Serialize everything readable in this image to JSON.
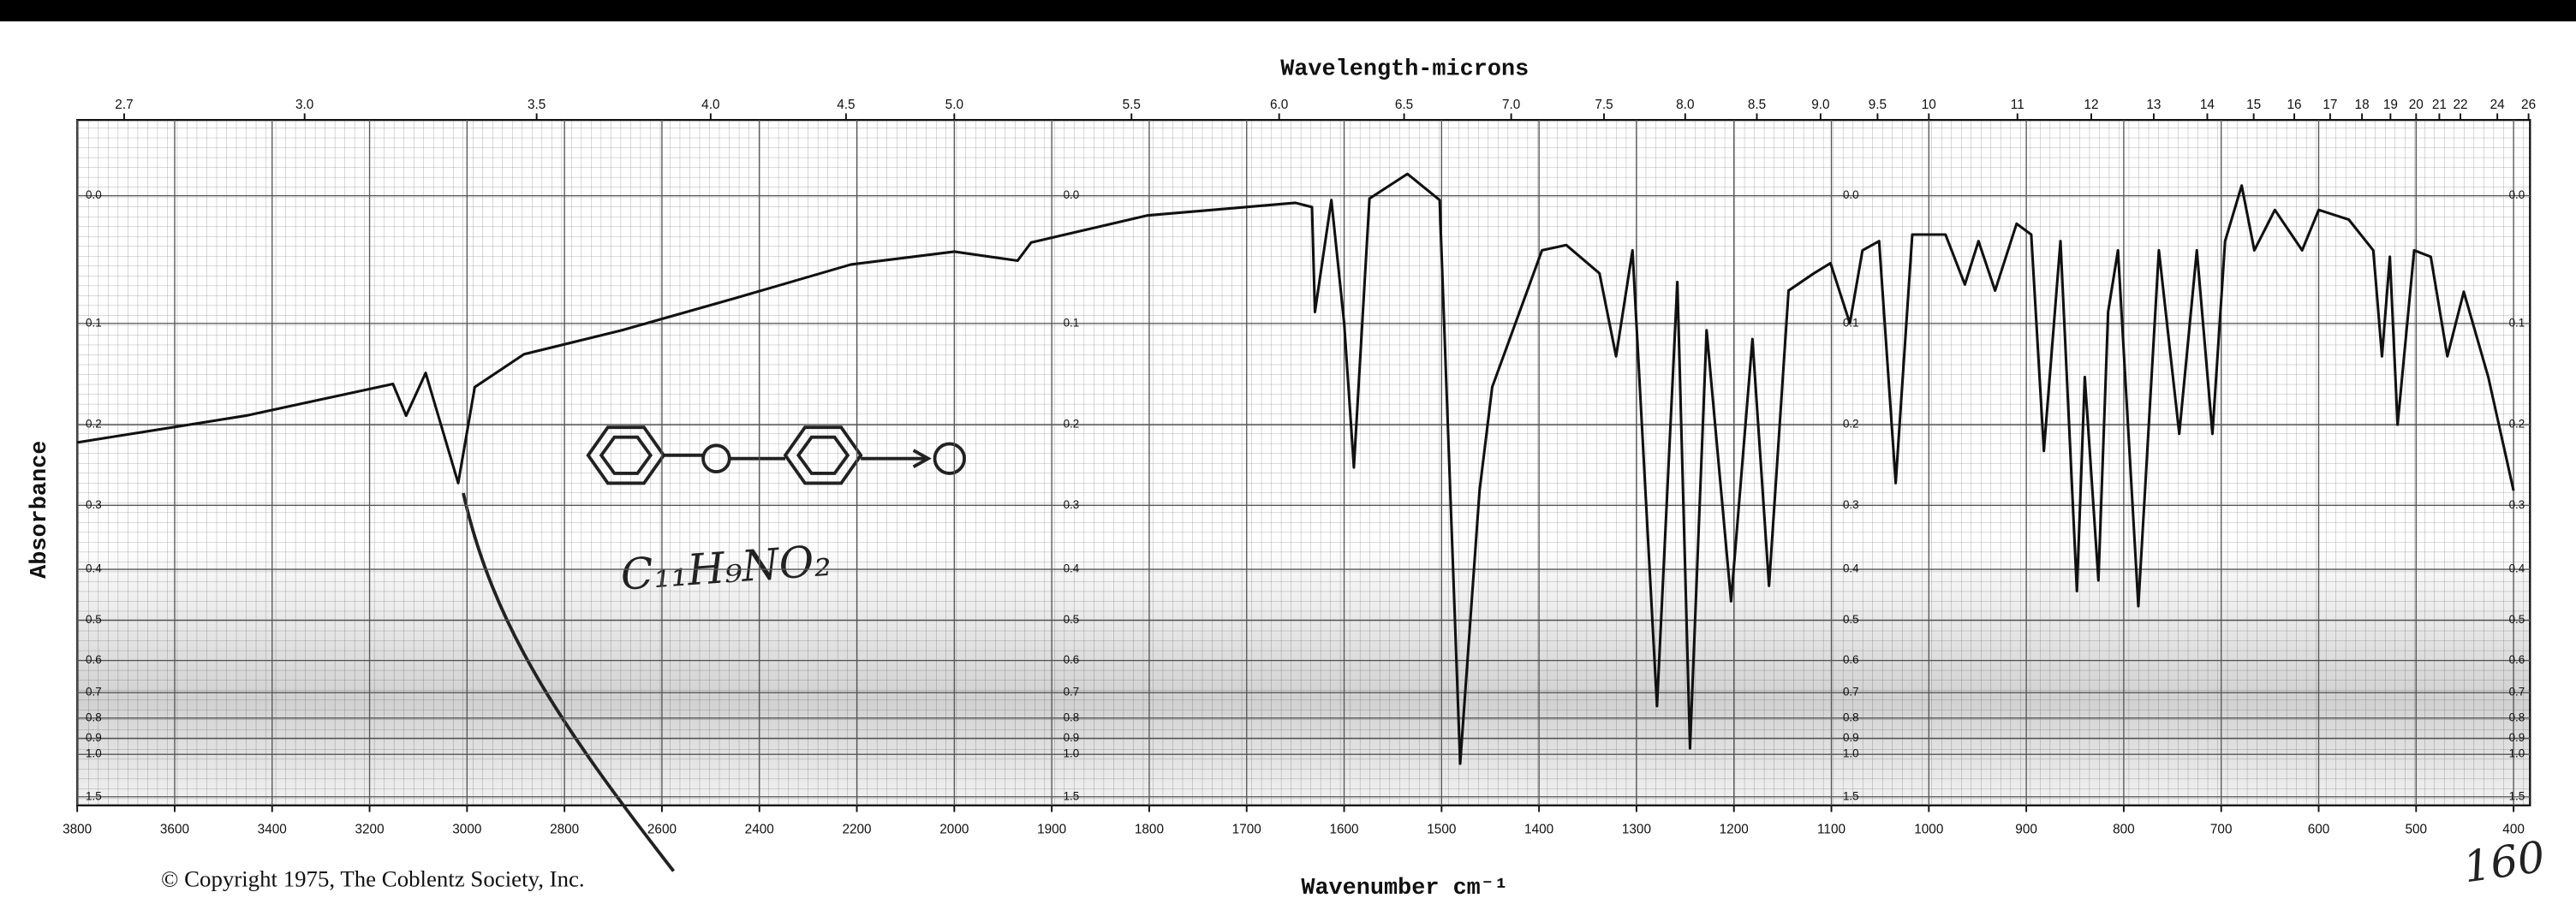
{
  "chart_data": {
    "type": "line",
    "x2label": "Wavelength-microns",
    "ylabel": "Absorbance",
    "xlabel": "Wavenumber cm⁻¹",
    "copyright": "© Copyright 1975, The Coblentz Society, Inc.",
    "annotations": [
      "C₁₁H₉NO₂",
      "160"
    ],
    "color": "#111111",
    "xlim": [
      3800,
      400
    ],
    "xscale": {
      "break": 2000,
      "ratio": 2
    },
    "xticks": [
      3800,
      3600,
      3400,
      3200,
      3000,
      2800,
      2600,
      2400,
      2200,
      2000,
      1900,
      1800,
      1700,
      1600,
      1500,
      1400,
      1300,
      1200,
      1100,
      1000,
      900,
      800,
      700,
      600,
      500,
      400
    ],
    "x2ticks": [
      2.7,
      {
        "value": 3,
        "label": "3.0"
      },
      3.5,
      {
        "value": 4,
        "label": "4.0"
      },
      4.5,
      {
        "value": 5,
        "label": "5.0"
      },
      5.5,
      {
        "value": 6,
        "label": "6.0"
      },
      6.5,
      {
        "value": 7,
        "label": "7.0"
      },
      7.5,
      {
        "value": 8,
        "label": "8.0"
      },
      8.5,
      {
        "value": 9,
        "label": "9.0"
      },
      9.5,
      10,
      11,
      12,
      13,
      14,
      15,
      16,
      17,
      18,
      19,
      20,
      21,
      22,
      24,
      26
    ],
    "ylim": [
      -0.05,
      1.75
    ],
    "yscale": "transmittance",
    "yticks": [
      {
        "value": 0,
        "label": "0.0"
      },
      0.1,
      0.2,
      0.3,
      0.4,
      0.5,
      0.6,
      0.7,
      0.8,
      0.9,
      {
        "value": 1,
        "label": "1.0"
      },
      1.5
    ],
    "grid": true,
    "x": [
      3800,
      3454,
      3152,
      3125,
      3085,
      3018,
      2984,
      2883,
      2682,
      2447,
      2212,
      2000,
      1935,
      1921,
      1802,
      1650,
      1633,
      1630,
      1613,
      1600,
      1590,
      1574,
      1535,
      1502,
      1481,
      1461,
      1448,
      1397,
      1372,
      1338,
      1321,
      1304,
      1279,
      1258,
      1245,
      1228,
      1203,
      1181,
      1164,
      1144,
      1118,
      1101,
      1081,
      1068,
      1051,
      1034,
      1017,
      983,
      963,
      949,
      932,
      910,
      895,
      882,
      865,
      848,
      840,
      826,
      816,
      806,
      785,
      764,
      743,
      725,
      709,
      696,
      679,
      666,
      645,
      617,
      600,
      569,
      544,
      535,
      527,
      519,
      502,
      485,
      468,
      451,
      426,
      400
    ],
    "values": [
      0.22,
      0.19,
      0.157,
      0.19,
      0.146,
      0.27,
      0.16,
      0.128,
      0.106,
      0.078,
      0.051,
      0.041,
      0.048,
      0.034,
      0.014,
      0.005,
      0.008,
      0.09,
      0.003,
      0.1,
      0.25,
      0.002,
      -0.015,
      0.003,
      1.07,
      0.28,
      0.16,
      0.04,
      0.036,
      0.058,
      0.13,
      0.04,
      0.75,
      0.065,
      0.96,
      0.106,
      0.46,
      0.114,
      0.43,
      0.072,
      0.058,
      0.05,
      0.1,
      0.04,
      0.033,
      0.27,
      0.028,
      0.028,
      0.067,
      0.033,
      0.072,
      0.02,
      0.028,
      0.23,
      0.033,
      0.44,
      0.15,
      0.42,
      0.09,
      0.04,
      0.47,
      0.04,
      0.21,
      0.04,
      0.21,
      0.033,
      -0.007,
      0.04,
      0.01,
      0.04,
      0.01,
      0.017,
      0.04,
      0.13,
      0.045,
      0.2,
      0.04,
      0.045,
      0.13,
      0.073,
      0.15,
      0.28
    ]
  }
}
